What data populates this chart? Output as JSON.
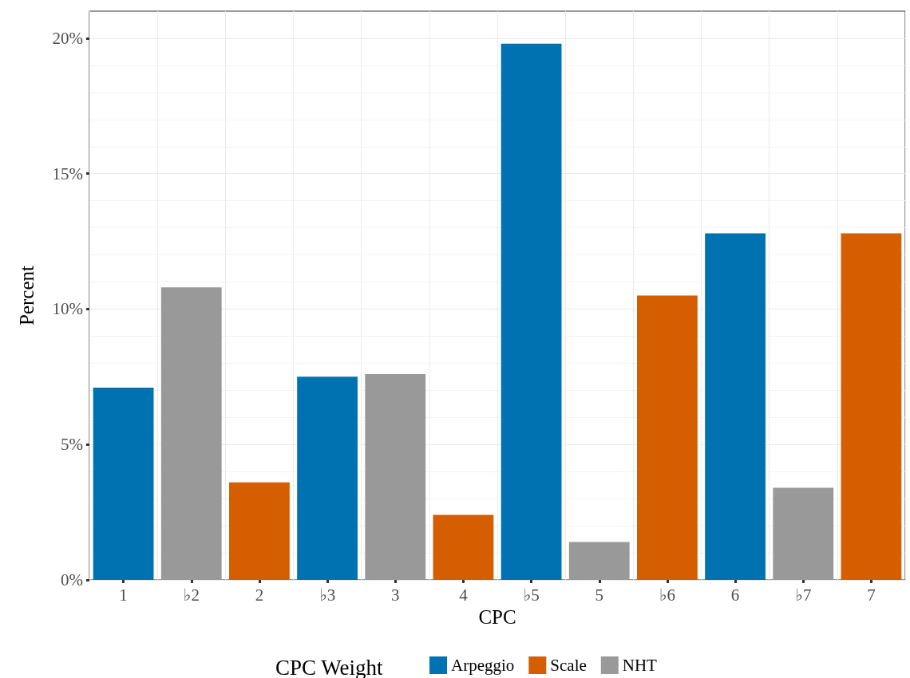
{
  "chart_data": {
    "type": "bar",
    "xlabel": "CPC",
    "ylabel": "Percent",
    "legend_title": "CPC Weight",
    "categories": [
      "1",
      "♭2",
      "2",
      "♭3",
      "3",
      "4",
      "♭5",
      "5",
      "♭6",
      "6",
      "♭7",
      "7"
    ],
    "series": [
      {
        "name": "Arpeggio",
        "color": "#0072b2",
        "values": [
          7.1,
          null,
          null,
          7.5,
          null,
          null,
          19.8,
          null,
          null,
          12.8,
          null,
          null
        ]
      },
      {
        "name": "Scale",
        "color": "#d55e00",
        "values": [
          null,
          null,
          3.6,
          null,
          null,
          2.4,
          null,
          null,
          10.5,
          null,
          null,
          12.8
        ]
      },
      {
        "name": "NHT",
        "color": "#999999",
        "values": [
          null,
          10.8,
          null,
          null,
          7.6,
          null,
          null,
          1.4,
          null,
          null,
          3.4,
          null
        ]
      }
    ],
    "stacked": true,
    "ylim": [
      0,
      21
    ],
    "yticks": [
      {
        "value": 0,
        "label": "0%"
      },
      {
        "value": 5,
        "label": "5%"
      },
      {
        "value": 10,
        "label": "10%"
      },
      {
        "value": 15,
        "label": "15%"
      },
      {
        "value": 20,
        "label": "20%"
      }
    ],
    "grid": true,
    "legend": "bottom"
  }
}
